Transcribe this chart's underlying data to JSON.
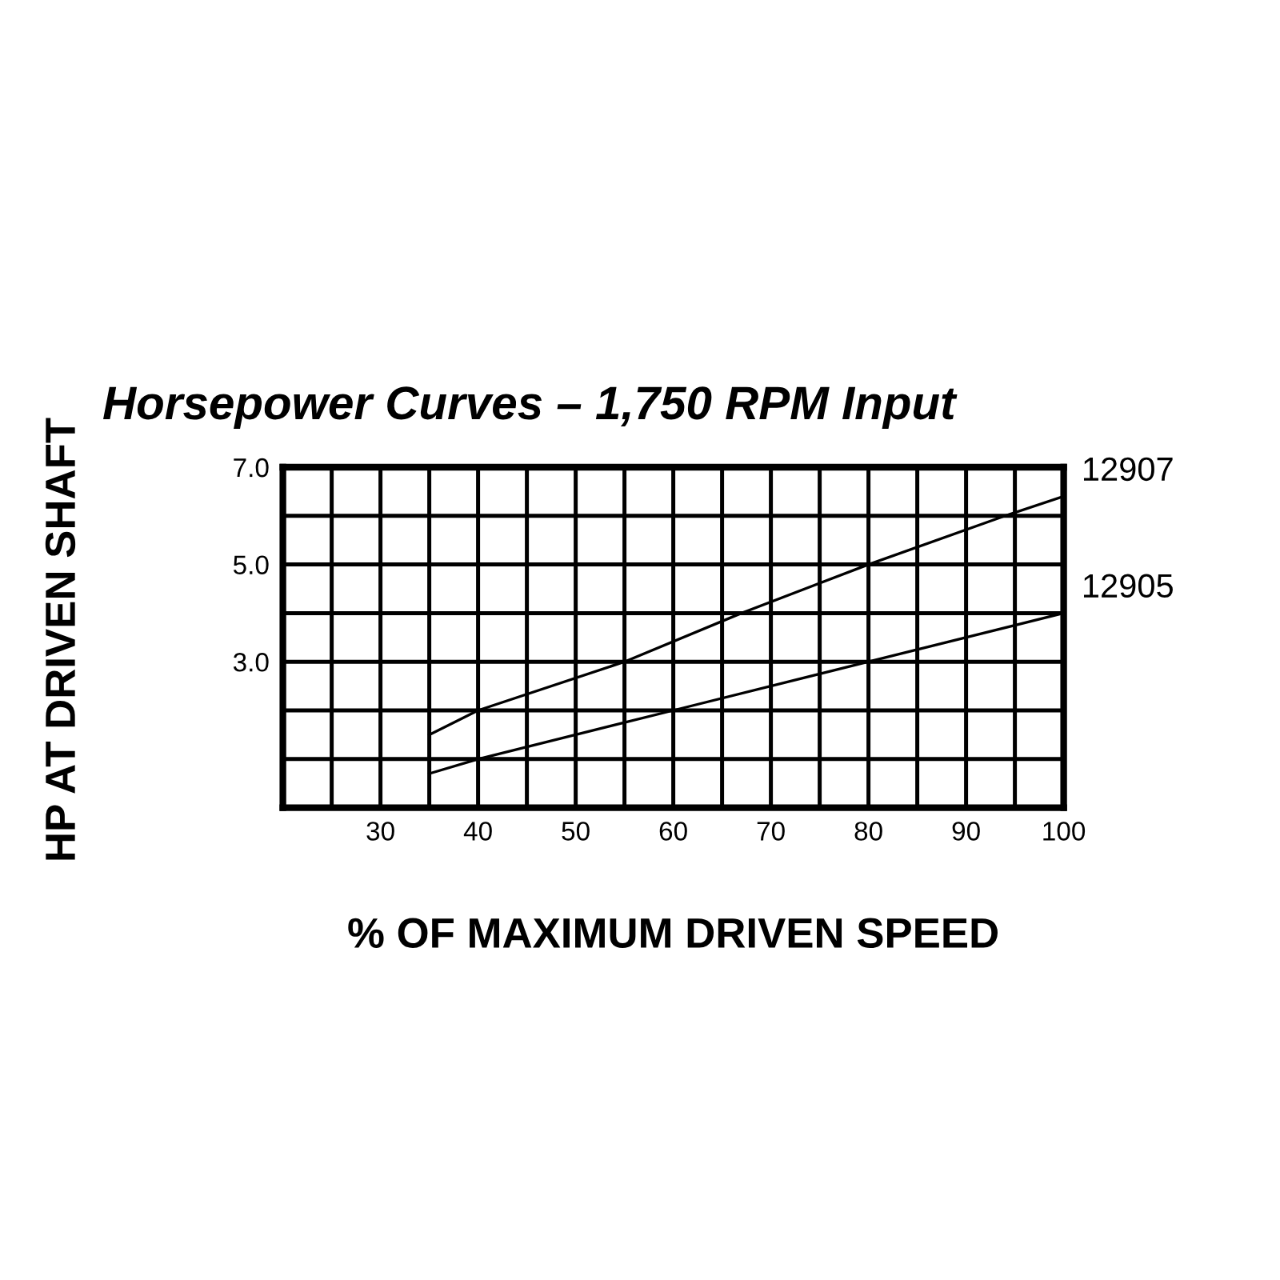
{
  "chart_data": {
    "type": "line",
    "title": "Horsepower Curves – 1,750 RPM Input",
    "xlabel": "% OF MAXIMUM DRIVEN SPEED",
    "ylabel": "HP AT DRIVEN SHAFT",
    "series": [
      {
        "name": "12907",
        "color": "#000000",
        "x": [
          35,
          40,
          55,
          67,
          80,
          94,
          100
        ],
        "values": [
          1.5,
          2.0,
          3.0,
          4.0,
          5.0,
          6.0,
          6.4
        ]
      },
      {
        "name": "12905",
        "color": "#000000",
        "x": [
          35,
          40,
          50,
          60,
          80,
          100
        ],
        "values": [
          0.7,
          1.0,
          1.5,
          2.0,
          3.0,
          4.0
        ]
      }
    ],
    "xlim": [
      20,
      100
    ],
    "xticks": [
      {
        "value": 25,
        "label": null
      },
      30,
      {
        "value": 35,
        "label": null
      },
      40,
      {
        "value": 45,
        "label": null
      },
      50,
      {
        "value": 55,
        "label": null
      },
      60,
      {
        "value": 65,
        "label": null
      },
      70,
      {
        "value": 75,
        "label": null
      },
      80,
      {
        "value": 85,
        "label": null
      },
      90,
      {
        "value": 95,
        "label": null
      },
      100
    ],
    "ylim": [
      0,
      7
    ],
    "yticks": [
      {
        "value": 1,
        "label": null
      },
      {
        "value": 2,
        "label": null
      },
      {
        "value": 3,
        "label": "3.0"
      },
      {
        "value": 4,
        "label": null
      },
      {
        "value": 5,
        "label": "5.0"
      },
      {
        "value": 6,
        "label": null
      },
      {
        "value": 7,
        "label": "7.0"
      }
    ],
    "grid": true,
    "legend": false,
    "marker": "none",
    "line_style": "solid"
  }
}
